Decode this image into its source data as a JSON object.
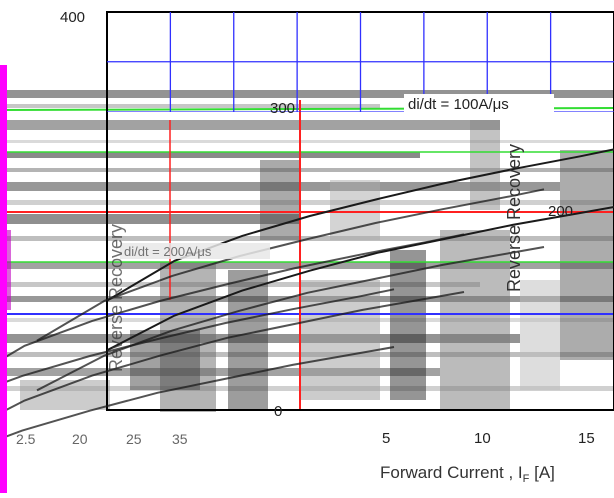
{
  "chart_data": {
    "type": "line",
    "title": "",
    "xlabel": "Forward Current , Iₓ [A]",
    "xlabel_display": "Forward Current , I",
    "xlabel_sub": "F",
    "xlabel_unit": "[A]",
    "ylabel": "Reverse Recovery",
    "annotation": "di/dt = 100A/μs",
    "annotation_faint": "di/dt = 200A/μs",
    "xlim": [
      0,
      15
    ],
    "ylim": [
      0,
      400
    ],
    "y_ticks": [
      "400",
      "300",
      "200",
      "0"
    ],
    "x_ticks": [
      "5",
      "10",
      "15"
    ],
    "x_ticks_garbled": [
      "2.5",
      "20",
      "25",
      "35"
    ],
    "grid": true,
    "series": [
      {
        "x": [
          0,
          2,
          4,
          6,
          8,
          10,
          12,
          14,
          15
        ],
        "values": [
          110,
          150,
          175,
          195,
          212,
          228,
          242,
          255,
          262
        ]
      },
      {
        "x": [
          0,
          2,
          4,
          6,
          8,
          10,
          12,
          14,
          15
        ],
        "values": [
          60,
          95,
          120,
          140,
          158,
          172,
          186,
          198,
          204
        ]
      }
    ]
  },
  "colors": {
    "grid": "#3030ff",
    "magenta": "#ff00ff",
    "green": "#33dd33",
    "red": "#ff2020",
    "gray": "#8c8c8c",
    "dark": "#1a1a1a"
  }
}
